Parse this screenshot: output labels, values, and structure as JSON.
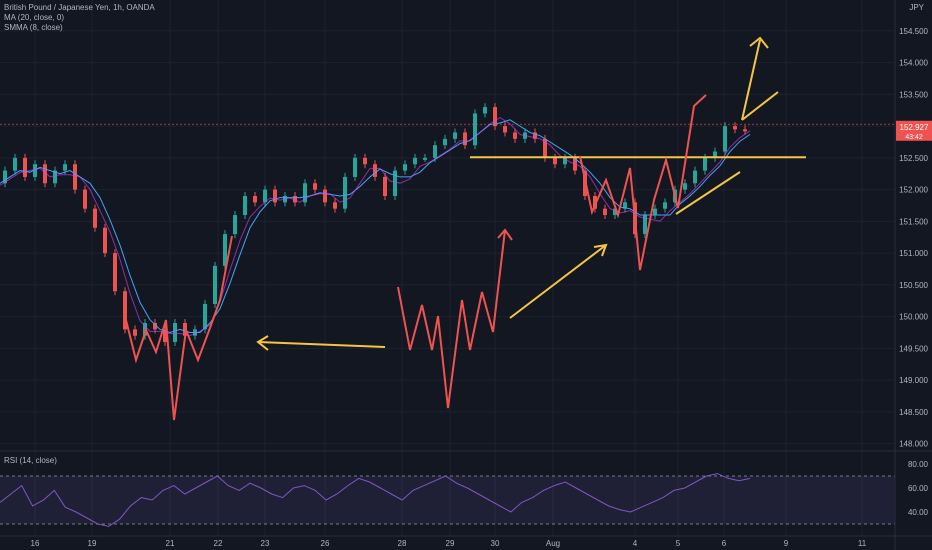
{
  "chart_data": {
    "type": "candlestick",
    "legend_lines": [
      "British Pound / Japanese Yen, 1h, OANDA",
      "MA (20, close, 0)",
      "SMMA (8, close)"
    ],
    "currency": "JPY",
    "y_ticks": [
      "154.500",
      "154.000",
      "153.500",
      "153.000",
      "152.500",
      "152.000",
      "151.500",
      "151.000",
      "150.500",
      "150.000",
      "149.500",
      "149.000",
      "148.500",
      "148.000"
    ],
    "ylim": [
      147.9,
      154.75
    ],
    "x_ticks": [
      "16",
      "19",
      "21",
      "22",
      "23",
      "26",
      "28",
      "29",
      "30",
      "Aug",
      "4",
      "5",
      "6",
      "9",
      "11"
    ],
    "price_label": {
      "value": "152.927",
      "countdown": "43:42"
    },
    "price_path": [
      [
        0,
        152.1
      ],
      [
        10,
        152.3
      ],
      [
        20,
        152.5
      ],
      [
        30,
        152.2
      ],
      [
        40,
        152.4
      ],
      [
        50,
        152.1
      ],
      [
        60,
        152.3
      ],
      [
        70,
        152.4
      ],
      [
        80,
        152.0
      ],
      [
        90,
        151.7
      ],
      [
        100,
        151.4
      ],
      [
        110,
        151.0
      ],
      [
        120,
        150.4
      ],
      [
        130,
        149.8
      ],
      [
        140,
        149.7
      ],
      [
        150,
        149.9
      ],
      [
        160,
        149.8
      ],
      [
        170,
        149.6
      ],
      [
        180,
        149.9
      ],
      [
        190,
        149.7
      ],
      [
        200,
        149.8
      ],
      [
        210,
        150.2
      ],
      [
        220,
        150.8
      ],
      [
        230,
        151.3
      ],
      [
        240,
        151.6
      ],
      [
        250,
        151.9
      ],
      [
        260,
        151.8
      ],
      [
        270,
        152.0
      ],
      [
        280,
        151.8
      ],
      [
        290,
        151.9
      ],
      [
        300,
        151.8
      ],
      [
        310,
        152.1
      ],
      [
        320,
        152.0
      ],
      [
        330,
        151.8
      ],
      [
        340,
        151.7
      ],
      [
        350,
        152.2
      ],
      [
        360,
        152.5
      ],
      [
        370,
        152.4
      ],
      [
        380,
        152.2
      ],
      [
        390,
        151.9
      ],
      [
        400,
        152.3
      ],
      [
        410,
        152.4
      ],
      [
        420,
        152.5
      ],
      [
        430,
        152.5
      ],
      [
        440,
        152.7
      ],
      [
        450,
        152.8
      ],
      [
        460,
        152.9
      ],
      [
        470,
        152.7
      ],
      [
        480,
        153.2
      ],
      [
        490,
        153.3
      ],
      [
        500,
        153.0
      ],
      [
        510,
        152.9
      ],
      [
        520,
        152.8
      ],
      [
        530,
        152.9
      ],
      [
        540,
        152.8
      ],
      [
        550,
        152.5
      ],
      [
        560,
        152.4
      ],
      [
        570,
        152.5
      ],
      [
        580,
        152.3
      ],
      [
        590,
        151.9
      ],
      [
        600,
        151.7
      ],
      [
        610,
        151.6
      ],
      [
        620,
        151.7
      ],
      [
        630,
        151.8
      ],
      [
        640,
        151.3
      ],
      [
        650,
        151.6
      ],
      [
        660,
        151.7
      ],
      [
        670,
        151.8
      ],
      [
        680,
        152.0
      ],
      [
        690,
        152.1
      ],
      [
        700,
        152.3
      ],
      [
        710,
        152.5
      ],
      [
        720,
        152.6
      ],
      [
        730,
        153.0
      ],
      [
        740,
        152.95
      ],
      [
        750,
        152.93
      ]
    ],
    "annotations": {
      "horizontal_lines": [
        153.03,
        152.51
      ],
      "note": "hand-drawn arrows and zigzag wave annotations"
    },
    "rsi": {
      "label": "RSI (14, close)",
      "ticks": [
        "80.00",
        "60.00",
        "40.00"
      ],
      "levels": [
        70,
        30
      ],
      "values": [
        48,
        55,
        62,
        45,
        50,
        58,
        44,
        40,
        35,
        30,
        28,
        34,
        45,
        52,
        50,
        58,
        62,
        55,
        60,
        65,
        70,
        62,
        58,
        64,
        60,
        55,
        52,
        60,
        62,
        58,
        50,
        55,
        62,
        68,
        65,
        60,
        55,
        50,
        58,
        62,
        66,
        70,
        64,
        60,
        55,
        50,
        45,
        40,
        48,
        52,
        58,
        62,
        65,
        60,
        55,
        50,
        45,
        42,
        40,
        44,
        48,
        52,
        58,
        60,
        65,
        70,
        72,
        68,
        66,
        68
      ]
    }
  }
}
